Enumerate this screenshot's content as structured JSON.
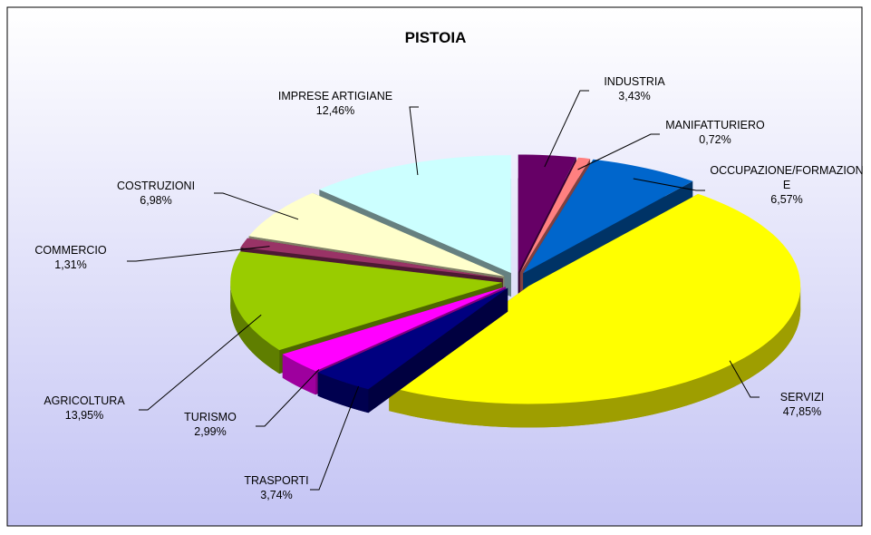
{
  "chart_data": {
    "type": "pie",
    "title": "PISTOIA",
    "categories": [
      "INDUSTRIA",
      "MANIFATTURIERO",
      "OCCUPAZIONE/FORMAZIONE",
      "SERVIZI",
      "TRASPORTI",
      "TURISMO",
      "AGRICOLTURA",
      "COMMERCIO",
      "COSTRUZIONI",
      "IMPRESE ARTIGIANE"
    ],
    "values": [
      3.43,
      0.72,
      6.57,
      47.85,
      3.74,
      2.99,
      13.95,
      1.31,
      6.98,
      12.46
    ],
    "value_labels": [
      "3,43%",
      "0,72%",
      "6,57%",
      "47,85%",
      "3,74%",
      "2,99%",
      "13,95%",
      "1,31%",
      "6,98%",
      "12,46%"
    ],
    "colors": [
      "#660066",
      "#ff8080",
      "#0066cc",
      "#ffff00",
      "#000080",
      "#ff00ff",
      "#99cc00",
      "#993366",
      "#ffffcc",
      "#ccffff"
    ]
  }
}
